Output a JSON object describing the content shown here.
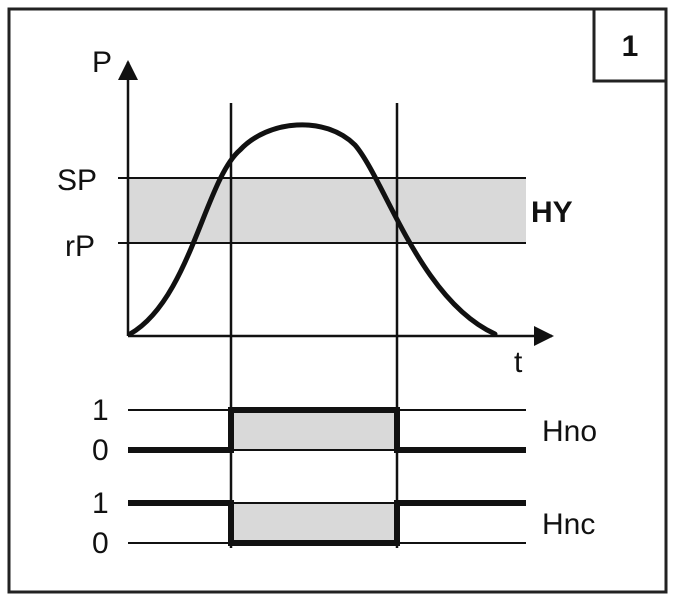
{
  "badge": {
    "number": "1"
  },
  "axes": {
    "y_label": "P",
    "x_label": "t"
  },
  "thresholds": {
    "upper": "SP",
    "lower": "rP",
    "band_label": "HY"
  },
  "outputs": [
    {
      "name": "Hno",
      "high_label": "1",
      "low_label": "0"
    },
    {
      "name": "Hnc",
      "high_label": "1",
      "low_label": "0"
    }
  ],
  "colors": {
    "line": "#111111",
    "band": "#d9d9d9",
    "frame": "#222222"
  }
}
